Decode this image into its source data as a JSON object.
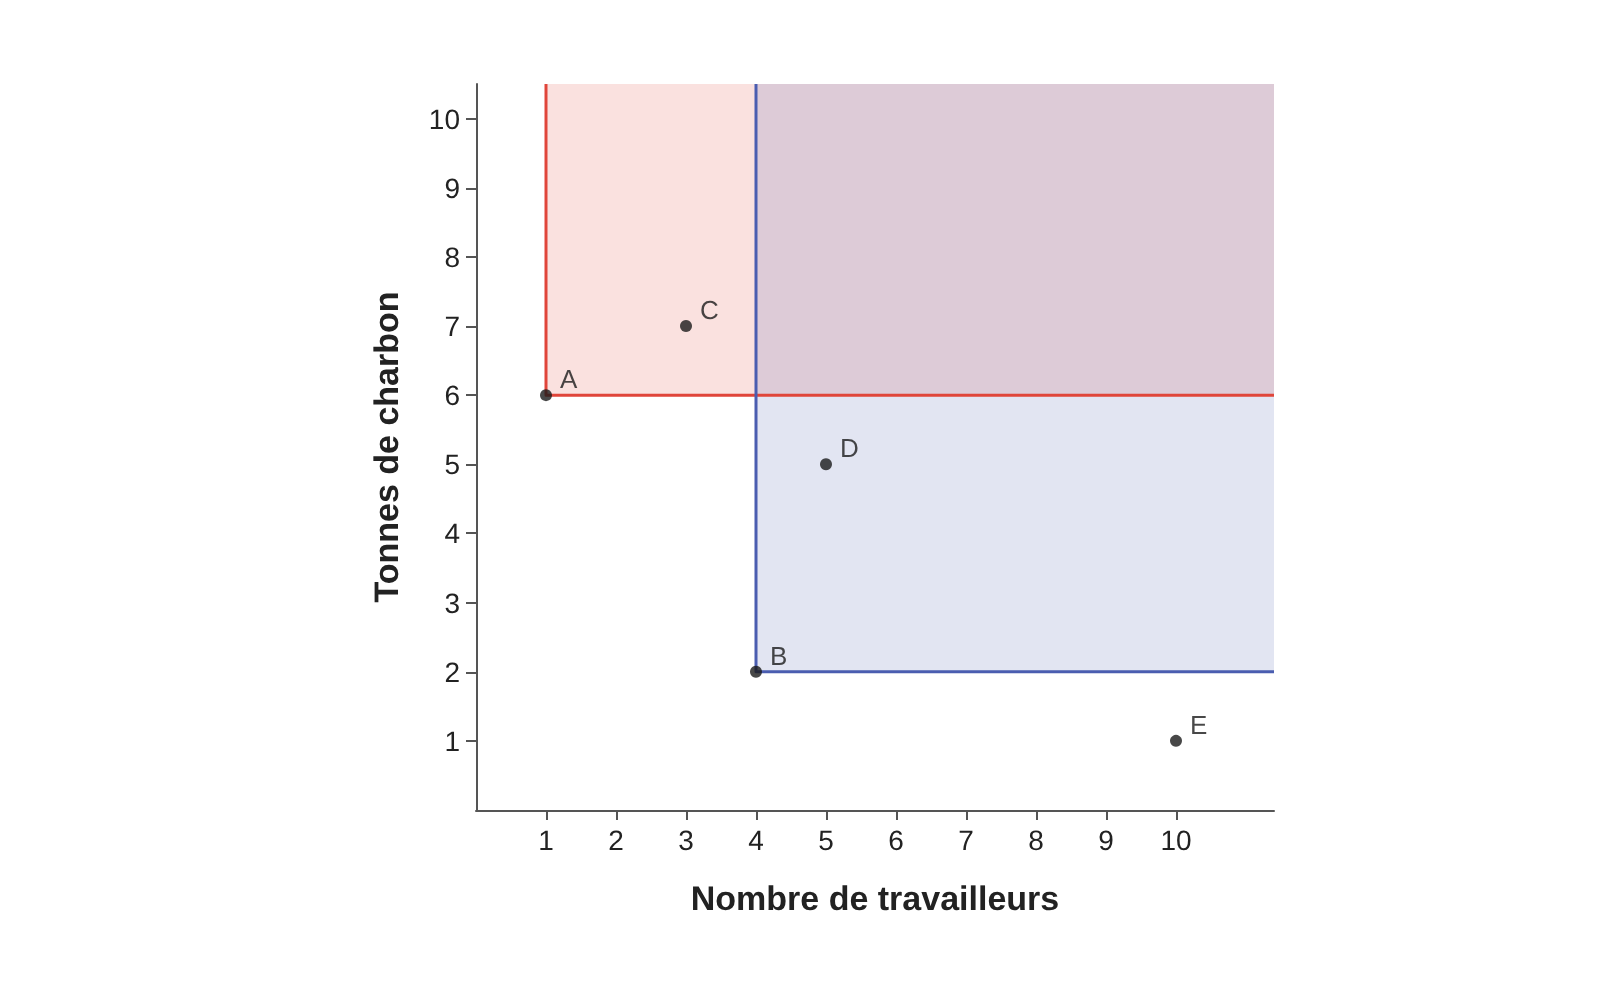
{
  "chart_data": {
    "type": "scatter",
    "xlabel": "Nombre de travailleurs",
    "ylabel": "Tonnes de charbon",
    "xlim": [
      0,
      11.4
    ],
    "ylim": [
      0,
      10.5
    ],
    "xticks": [
      1,
      2,
      3,
      4,
      5,
      6,
      7,
      8,
      9,
      10
    ],
    "yticks": [
      1,
      2,
      3,
      4,
      5,
      6,
      7,
      8,
      9,
      10
    ],
    "grid": false,
    "series": [
      {
        "type": "line",
        "color": "#e0453a",
        "x": [
          1,
          1,
          11.4
        ],
        "values": [
          10.5,
          6,
          6
        ],
        "lower": [
          null,
          6,
          6
        ],
        "upper": [
          null,
          10.5,
          10.5
        ]
      },
      {
        "type": "line",
        "color": "#4a5db0",
        "x": [
          4,
          4,
          11.4
        ],
        "values": [
          10.5,
          2,
          2
        ],
        "lower": [
          null,
          2,
          2
        ],
        "upper": [
          null,
          10.5,
          10.5
        ]
      },
      {
        "marker": "circle",
        "color": "#1a1a1a",
        "x": [
          1,
          3,
          4,
          5,
          10
        ],
        "values": [
          6,
          7,
          2,
          5,
          1
        ]
      }
    ],
    "annotations": [
      {
        "text": "A",
        "x": 1,
        "y": 6
      },
      {
        "text": "C",
        "x": 3,
        "y": 7
      },
      {
        "text": "B",
        "x": 4,
        "y": 2
      },
      {
        "text": "D",
        "x": 5,
        "y": 5
      },
      {
        "text": "E",
        "x": 10,
        "y": 1
      }
    ]
  }
}
